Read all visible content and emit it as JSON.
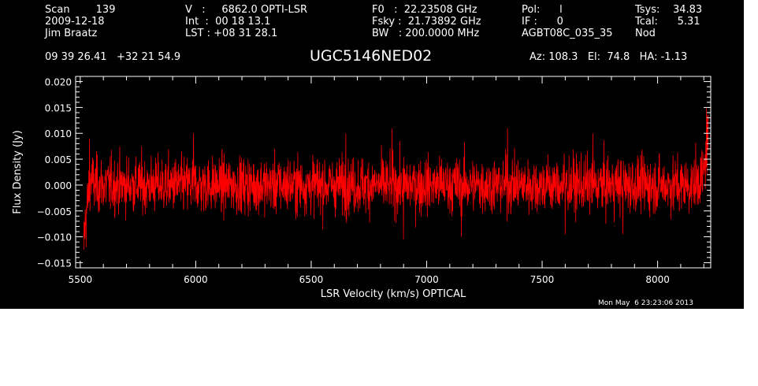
{
  "header": {
    "col1": [
      "Scan        139",
      "2009-12-18",
      "Jim Braatz"
    ],
    "col2": [
      "V   :     6862.0 OPTI-LSR",
      "Int  :  00 18 13.1",
      "LST : +08 31 28.1"
    ],
    "col3": [
      "F0   :  22.23508 GHz",
      "Fsky :  21.73892 GHz",
      "BW   : 200.0000 MHz"
    ],
    "col4": [
      "Pol:      l",
      "IF :      0",
      "AGBT08C_035_35"
    ],
    "col5": [
      "Tsys:    34.83",
      "Tcal:      5.31",
      "Nod"
    ],
    "coords": "09 39 26.41   +32 21 54.9",
    "source": "UGC5146NED02",
    "azelha": "Az: 108.3   El:  74.8   HA: -1.13"
  },
  "footer": {
    "timestamp": "Mon May  6 23:23:06 2013"
  },
  "colors": {
    "background": "#000000",
    "trace": "#ff0000",
    "axes": "#ffffff"
  },
  "chart_data": {
    "type": "line",
    "xlabel": "LSR Velocity (km/s) OPTICAL",
    "ylabel": "Flux Density (Jy)",
    "xlim": [
      5480,
      8230
    ],
    "ylim": [
      -0.016,
      0.021
    ],
    "x_ticks": [
      5500,
      6000,
      6500,
      7000,
      7500,
      8000
    ],
    "y_ticks": [
      -0.015,
      -0.01,
      -0.005,
      0.0,
      0.005,
      0.01,
      0.015,
      0.02
    ],
    "y_tick_labels": [
      "−0.015",
      "−0.010",
      "−0.005",
      "0.000",
      "0.005",
      "0.010",
      "0.015",
      "0.020"
    ],
    "series": [
      {
        "x": [
          5515,
          5520,
          5525,
          5530,
          5535,
          5540,
          5545,
          5550,
          5560,
          5580,
          5600,
          5650,
          5700,
          5750,
          5800,
          5900,
          6000,
          6100,
          6200,
          6300,
          6400,
          6500,
          6600,
          6700,
          6800,
          6900,
          7000,
          7100,
          7200,
          7300,
          7400,
          7500,
          7600,
          7700,
          7800,
          7900,
          8000,
          8100,
          8150,
          8180,
          8200,
          8210,
          8220
        ],
        "y": [
          -0.01,
          -0.008,
          -0.006,
          -0.004,
          -0.002,
          0.0,
          0.001,
          0.001,
          0.0,
          0.0,
          0.0,
          0.0,
          0.0,
          0.0,
          0.0,
          0.0,
          0.0,
          0.0,
          0.0,
          0.0,
          0.0,
          0.0,
          0.0,
          0.0,
          0.0,
          0.0,
          0.0,
          0.0,
          0.0,
          0.0,
          0.0,
          0.0,
          0.0,
          0.0,
          0.0,
          0.0,
          0.0,
          0.0,
          0.0,
          0.001,
          0.002,
          0.006,
          0.01
        ],
        "noise_rms": 0.0027,
        "peaks": [
          {
            "x": 5540,
            "y": 0.009
          },
          {
            "x": 5990,
            "y": 0.01
          },
          {
            "x": 6650,
            "y": 0.01
          },
          {
            "x": 6850,
            "y": 0.011
          },
          {
            "x": 7350,
            "y": 0.011
          },
          {
            "x": 7720,
            "y": 0.01
          },
          {
            "x": 8212,
            "y": 0.015
          }
        ],
        "troughs": [
          {
            "x": 5515,
            "y": -0.0125
          },
          {
            "x": 5525,
            "y": -0.012
          },
          {
            "x": 6900,
            "y": -0.0105
          },
          {
            "x": 7150,
            "y": -0.01
          },
          {
            "x": 7600,
            "y": -0.0095
          },
          {
            "x": 7850,
            "y": -0.0095
          }
        ]
      }
    ]
  }
}
